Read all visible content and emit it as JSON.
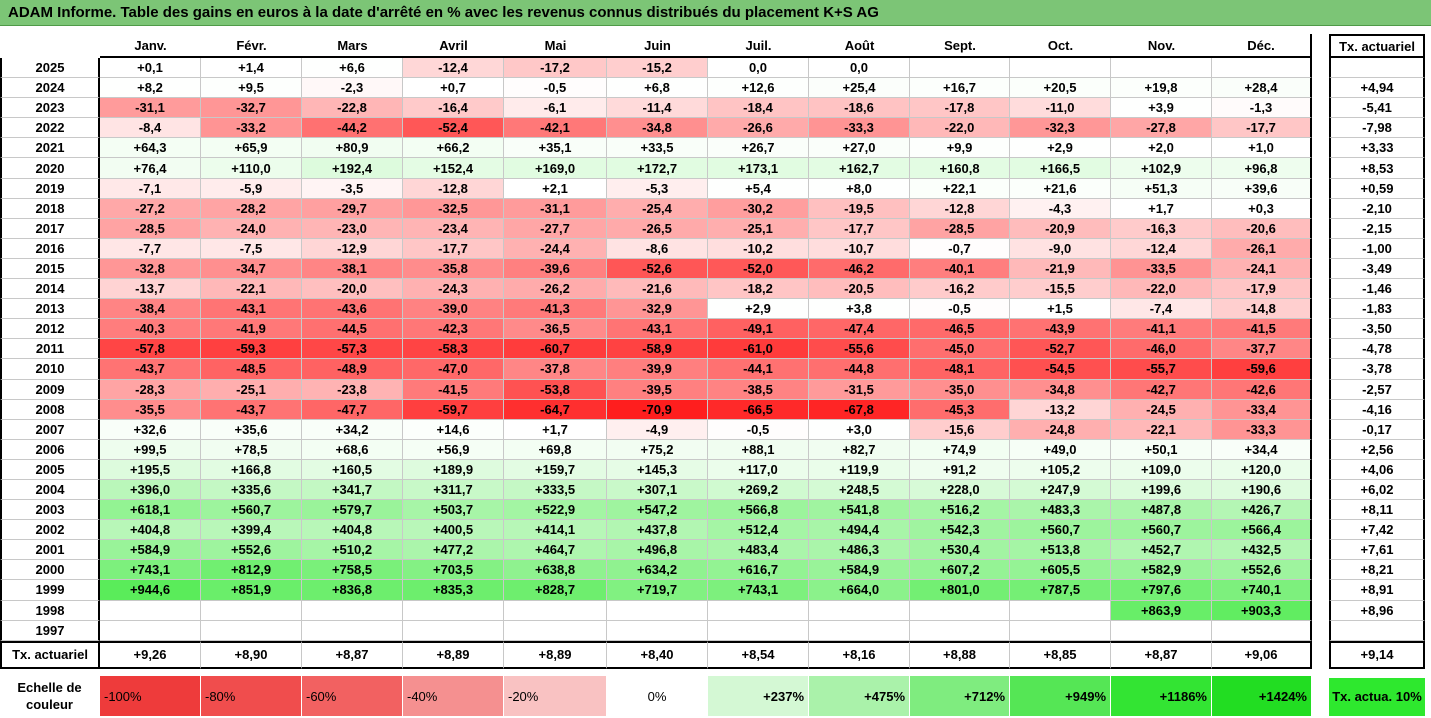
{
  "title": "ADAM Informe. Table des gains en euros à la date d'arrêté en % avec les revenus connus distribués du placement K+S AG",
  "months": [
    "Janv.",
    "Févr.",
    "Mars",
    "Avril",
    "Mai",
    "Juin",
    "Juil.",
    "Août",
    "Sept.",
    "Oct.",
    "Nov.",
    "Déc."
  ],
  "tx_header": "Tx. actuariel",
  "rows": [
    {
      "year": "2025",
      "v": [
        "+0,1",
        "+1,4",
        "+6,6",
        "-12,4",
        "-17,2",
        "-15,2",
        "0,0",
        "0,0",
        "",
        "",
        "",
        ""
      ],
      "tx": ""
    },
    {
      "year": "2024",
      "v": [
        "+8,2",
        "+9,5",
        "-2,3",
        "+0,7",
        "-0,5",
        "+6,8",
        "+12,6",
        "+25,4",
        "+16,7",
        "+20,5",
        "+19,8",
        "+28,4"
      ],
      "tx": "+4,94"
    },
    {
      "year": "2023",
      "v": [
        "-31,1",
        "-32,7",
        "-22,8",
        "-16,4",
        "-6,1",
        "-11,4",
        "-18,4",
        "-18,6",
        "-17,8",
        "-11,0",
        "+3,9",
        "-1,3"
      ],
      "tx": "-5,41"
    },
    {
      "year": "2022",
      "v": [
        "-8,4",
        "-33,2",
        "-44,2",
        "-52,4",
        "-42,1",
        "-34,8",
        "-26,6",
        "-33,3",
        "-22,0",
        "-32,3",
        "-27,8",
        "-17,7"
      ],
      "tx": "-7,98"
    },
    {
      "year": "2021",
      "v": [
        "+64,3",
        "+65,9",
        "+80,9",
        "+66,2",
        "+35,1",
        "+33,5",
        "+26,7",
        "+27,0",
        "+9,9",
        "+2,9",
        "+2,0",
        "+1,0"
      ],
      "tx": "+3,33"
    },
    {
      "year": "2020",
      "v": [
        "+76,4",
        "+110,0",
        "+192,4",
        "+152,4",
        "+169,0",
        "+172,7",
        "+173,1",
        "+162,7",
        "+160,8",
        "+166,5",
        "+102,9",
        "+96,8"
      ],
      "tx": "+8,53"
    },
    {
      "year": "2019",
      "v": [
        "-7,1",
        "-5,9",
        "-3,5",
        "-12,8",
        "+2,1",
        "-5,3",
        "+5,4",
        "+8,0",
        "+22,1",
        "+21,6",
        "+51,3",
        "+39,6"
      ],
      "tx": "+0,59"
    },
    {
      "year": "2018",
      "v": [
        "-27,2",
        "-28,2",
        "-29,7",
        "-32,5",
        "-31,1",
        "-25,4",
        "-30,2",
        "-19,5",
        "-12,8",
        "-4,3",
        "+1,7",
        "+0,3"
      ],
      "tx": "-2,10"
    },
    {
      "year": "2017",
      "v": [
        "-28,5",
        "-24,0",
        "-23,0",
        "-23,4",
        "-27,7",
        "-26,5",
        "-25,1",
        "-17,7",
        "-28,5",
        "-20,9",
        "-16,3",
        "-20,6"
      ],
      "tx": "-2,15"
    },
    {
      "year": "2016",
      "v": [
        "-7,7",
        "-7,5",
        "-12,9",
        "-17,7",
        "-24,4",
        "-8,6",
        "-10,2",
        "-10,7",
        "-0,7",
        "-9,0",
        "-12,4",
        "-26,1"
      ],
      "tx": "-1,00"
    },
    {
      "year": "2015",
      "v": [
        "-32,8",
        "-34,7",
        "-38,1",
        "-35,8",
        "-39,6",
        "-52,6",
        "-52,0",
        "-46,2",
        "-40,1",
        "-21,9",
        "-33,5",
        "-24,1"
      ],
      "tx": "-3,49"
    },
    {
      "year": "2014",
      "v": [
        "-13,7",
        "-22,1",
        "-20,0",
        "-24,3",
        "-26,2",
        "-21,6",
        "-18,2",
        "-20,5",
        "-16,2",
        "-15,5",
        "-22,0",
        "-17,9"
      ],
      "tx": "-1,46"
    },
    {
      "year": "2013",
      "v": [
        "-38,4",
        "-43,1",
        "-43,6",
        "-39,0",
        "-41,3",
        "-32,9",
        "+2,9",
        "+3,8",
        "-0,5",
        "+1,5",
        "-7,4",
        "-14,8"
      ],
      "tx": "-1,83"
    },
    {
      "year": "2012",
      "v": [
        "-40,3",
        "-41,9",
        "-44,5",
        "-42,3",
        "-36,5",
        "-43,1",
        "-49,1",
        "-47,4",
        "-46,5",
        "-43,9",
        "-41,1",
        "-41,5"
      ],
      "tx": "-3,50"
    },
    {
      "year": "2011",
      "v": [
        "-57,8",
        "-59,3",
        "-57,3",
        "-58,3",
        "-60,7",
        "-58,9",
        "-61,0",
        "-55,6",
        "-45,0",
        "-52,7",
        "-46,0",
        "-37,7"
      ],
      "tx": "-4,78"
    },
    {
      "year": "2010",
      "v": [
        "-43,7",
        "-48,5",
        "-48,9",
        "-47,0",
        "-37,8",
        "-39,9",
        "-44,1",
        "-44,8",
        "-48,1",
        "-54,5",
        "-55,7",
        "-59,6"
      ],
      "tx": "-3,78"
    },
    {
      "year": "2009",
      "v": [
        "-28,3",
        "-25,1",
        "-23,8",
        "-41,5",
        "-53,8",
        "-39,5",
        "-38,5",
        "-31,5",
        "-35,0",
        "-34,8",
        "-42,7",
        "-42,6"
      ],
      "tx": "-2,57"
    },
    {
      "year": "2008",
      "v": [
        "-35,5",
        "-43,7",
        "-47,7",
        "-59,7",
        "-64,7",
        "-70,9",
        "-66,5",
        "-67,8",
        "-45,3",
        "-13,2",
        "-24,5",
        "-33,4"
      ],
      "tx": "-4,16"
    },
    {
      "year": "2007",
      "v": [
        "+32,6",
        "+35,6",
        "+34,2",
        "+14,6",
        "+1,7",
        "-4,9",
        "-0,5",
        "+3,0",
        "-15,6",
        "-24,8",
        "-22,1",
        "-33,3"
      ],
      "tx": "-0,17"
    },
    {
      "year": "2006",
      "v": [
        "+99,5",
        "+78,5",
        "+68,6",
        "+56,9",
        "+69,8",
        "+75,2",
        "+88,1",
        "+82,7",
        "+74,9",
        "+49,0",
        "+50,1",
        "+34,4"
      ],
      "tx": "+2,56"
    },
    {
      "year": "2005",
      "v": [
        "+195,5",
        "+166,8",
        "+160,5",
        "+189,9",
        "+159,7",
        "+145,3",
        "+117,0",
        "+119,9",
        "+91,2",
        "+105,2",
        "+109,0",
        "+120,0"
      ],
      "tx": "+4,06"
    },
    {
      "year": "2004",
      "v": [
        "+396,0",
        "+335,6",
        "+341,7",
        "+311,7",
        "+333,5",
        "+307,1",
        "+269,2",
        "+248,5",
        "+228,0",
        "+247,9",
        "+199,6",
        "+190,6"
      ],
      "tx": "+6,02"
    },
    {
      "year": "2003",
      "v": [
        "+618,1",
        "+560,7",
        "+579,7",
        "+503,7",
        "+522,9",
        "+547,2",
        "+566,8",
        "+541,8",
        "+516,2",
        "+483,3",
        "+487,8",
        "+426,7"
      ],
      "tx": "+8,11"
    },
    {
      "year": "2002",
      "v": [
        "+404,8",
        "+399,4",
        "+404,8",
        "+400,5",
        "+414,1",
        "+437,8",
        "+512,4",
        "+494,4",
        "+542,3",
        "+560,7",
        "+560,7",
        "+566,4"
      ],
      "tx": "+7,42"
    },
    {
      "year": "2001",
      "v": [
        "+584,9",
        "+552,6",
        "+510,2",
        "+477,2",
        "+464,7",
        "+496,8",
        "+483,4",
        "+486,3",
        "+530,4",
        "+513,8",
        "+452,7",
        "+432,5"
      ],
      "tx": "+7,61"
    },
    {
      "year": "2000",
      "v": [
        "+743,1",
        "+812,9",
        "+758,5",
        "+703,5",
        "+638,8",
        "+634,2",
        "+616,7",
        "+584,9",
        "+607,2",
        "+605,5",
        "+582,9",
        "+552,6"
      ],
      "tx": "+8,21"
    },
    {
      "year": "1999",
      "v": [
        "+944,6",
        "+851,9",
        "+836,8",
        "+835,3",
        "+828,7",
        "+719,7",
        "+743,1",
        "+664,0",
        "+801,0",
        "+787,5",
        "+797,6",
        "+740,1"
      ],
      "tx": "+8,91"
    },
    {
      "year": "1998",
      "v": [
        "",
        "",
        "",
        "",
        "",
        "",
        "",
        "",
        "",
        "",
        "+863,9",
        "+903,3"
      ],
      "tx": "+8,96"
    },
    {
      "year": "1997",
      "v": [
        "",
        "",
        "",
        "",
        "",
        "",
        "",
        "",
        "",
        "",
        "",
        ""
      ],
      "tx": ""
    }
  ],
  "tx_row": {
    "label": "Tx. actuariel",
    "v": [
      "+9,26",
      "+8,90",
      "+8,87",
      "+8,89",
      "+8,89",
      "+8,40",
      "+8,54",
      "+8,16",
      "+8,88",
      "+8,85",
      "+8,87",
      "+9,06"
    ],
    "tx": "+9,14"
  },
  "legend": {
    "label": "Echelle de couleur",
    "items": [
      {
        "text": "-100%",
        "color": "#ee3b3b",
        "align": "left"
      },
      {
        "text": "-80%",
        "color": "#f04d4d",
        "align": "left"
      },
      {
        "text": "-60%",
        "color": "#f26161",
        "align": "left"
      },
      {
        "text": "-40%",
        "color": "#f59090",
        "align": "left"
      },
      {
        "text": "-20%",
        "color": "#f9c2c2",
        "align": "left"
      },
      {
        "text": "0%",
        "color": "#ffffff",
        "align": "center"
      },
      {
        "text": "+237%",
        "color": "#d4f8d4",
        "align": "right"
      },
      {
        "text": "+475%",
        "color": "#aaf2aa",
        "align": "right"
      },
      {
        "text": "+712%",
        "color": "#7fec7f",
        "align": "right"
      },
      {
        "text": "+949%",
        "color": "#55e655",
        "align": "right"
      },
      {
        "text": "+1186%",
        "color": "#33e433",
        "align": "right"
      },
      {
        "text": "+1424%",
        "color": "#22dd22",
        "align": "right"
      }
    ],
    "tx_label": "Tx. actua. 10%",
    "tx_color": "#2ee82e"
  }
}
